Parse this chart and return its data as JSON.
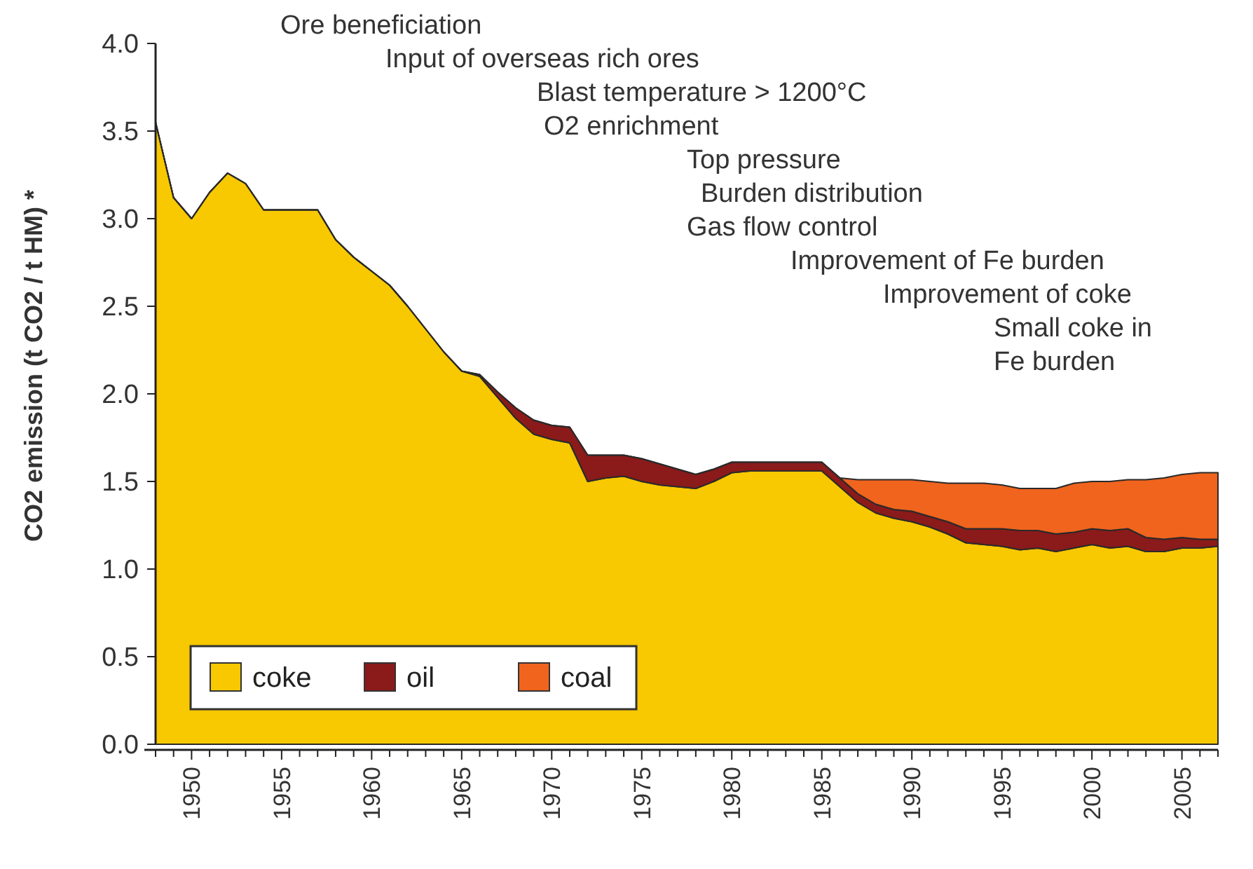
{
  "chart_data": {
    "type": "area",
    "stacked": true,
    "ylabel": "CO2 emission (t CO2 / t HM)  *",
    "x": [
      1948,
      1949,
      1950,
      1951,
      1952,
      1953,
      1954,
      1955,
      1956,
      1957,
      1958,
      1959,
      1960,
      1961,
      1962,
      1963,
      1964,
      1965,
      1966,
      1967,
      1968,
      1969,
      1970,
      1971,
      1972,
      1973,
      1974,
      1975,
      1976,
      1977,
      1978,
      1979,
      1980,
      1981,
      1982,
      1983,
      1984,
      1985,
      1986,
      1987,
      1988,
      1989,
      1990,
      1991,
      1992,
      1993,
      1994,
      1995,
      1996,
      1997,
      1998,
      1999,
      2000,
      2001,
      2002,
      2003,
      2004,
      2005,
      2006,
      2007
    ],
    "series": [
      {
        "name": "coke",
        "color": "#f8c800",
        "values": [
          3.55,
          3.12,
          3.0,
          3.15,
          3.26,
          3.2,
          3.05,
          3.05,
          3.05,
          3.05,
          2.88,
          2.78,
          2.7,
          2.62,
          2.5,
          2.37,
          2.24,
          2.13,
          2.1,
          1.98,
          1.86,
          1.77,
          1.74,
          1.72,
          1.5,
          1.52,
          1.53,
          1.5,
          1.48,
          1.47,
          1.46,
          1.5,
          1.55,
          1.56,
          1.56,
          1.56,
          1.56,
          1.56,
          1.47,
          1.38,
          1.32,
          1.29,
          1.27,
          1.24,
          1.2,
          1.15,
          1.14,
          1.13,
          1.11,
          1.12,
          1.1,
          1.12,
          1.14,
          1.12,
          1.13,
          1.1,
          1.1,
          1.12,
          1.12,
          1.13
        ]
      },
      {
        "name": "oil",
        "color": "#8b1a1a",
        "values": [
          0,
          0,
          0,
          0,
          0,
          0,
          0,
          0,
          0,
          0,
          0,
          0,
          0,
          0,
          0,
          0,
          0,
          0,
          0.01,
          0.03,
          0.06,
          0.08,
          0.08,
          0.09,
          0.15,
          0.13,
          0.12,
          0.13,
          0.12,
          0.1,
          0.08,
          0.07,
          0.06,
          0.05,
          0.05,
          0.05,
          0.05,
          0.05,
          0.05,
          0.05,
          0.05,
          0.05,
          0.06,
          0.06,
          0.07,
          0.08,
          0.09,
          0.1,
          0.11,
          0.1,
          0.1,
          0.09,
          0.09,
          0.1,
          0.1,
          0.08,
          0.07,
          0.06,
          0.05,
          0.04
        ]
      },
      {
        "name": "coal",
        "color": "#f0641e",
        "values": [
          0,
          0,
          0,
          0,
          0,
          0,
          0,
          0,
          0,
          0,
          0,
          0,
          0,
          0,
          0,
          0,
          0,
          0,
          0,
          0,
          0,
          0,
          0,
          0,
          0,
          0,
          0,
          0,
          0,
          0,
          0,
          0,
          0,
          0,
          0,
          0,
          0,
          0,
          0,
          0.08,
          0.14,
          0.17,
          0.18,
          0.2,
          0.22,
          0.26,
          0.26,
          0.25,
          0.24,
          0.24,
          0.26,
          0.28,
          0.27,
          0.28,
          0.28,
          0.33,
          0.35,
          0.36,
          0.38,
          0.38
        ]
      }
    ],
    "xlim": [
      1948,
      2007
    ],
    "xticks": [
      {
        "value": 1948,
        "label": null
      },
      {
        "value": 1949,
        "label": null
      },
      1950,
      {
        "value": 1951,
        "label": null
      },
      {
        "value": 1952,
        "label": null
      },
      {
        "value": 1953,
        "label": null
      },
      {
        "value": 1954,
        "label": null
      },
      1955,
      {
        "value": 1956,
        "label": null
      },
      {
        "value": 1957,
        "label": null
      },
      {
        "value": 1958,
        "label": null
      },
      {
        "value": 1959,
        "label": null
      },
      1960,
      {
        "value": 1961,
        "label": null
      },
      {
        "value": 1962,
        "label": null
      },
      {
        "value": 1963,
        "label": null
      },
      {
        "value": 1964,
        "label": null
      },
      1965,
      {
        "value": 1966,
        "label": null
      },
      {
        "value": 1967,
        "label": null
      },
      {
        "value": 1968,
        "label": null
      },
      {
        "value": 1969,
        "label": null
      },
      1970,
      {
        "value": 1971,
        "label": null
      },
      {
        "value": 1972,
        "label": null
      },
      {
        "value": 1973,
        "label": null
      },
      {
        "value": 1974,
        "label": null
      },
      1975,
      {
        "value": 1976,
        "label": null
      },
      {
        "value": 1977,
        "label": null
      },
      {
        "value": 1978,
        "label": null
      },
      {
        "value": 1979,
        "label": null
      },
      1980,
      {
        "value": 1981,
        "label": null
      },
      {
        "value": 1982,
        "label": null
      },
      {
        "value": 1983,
        "label": null
      },
      {
        "value": 1984,
        "label": null
      },
      1985,
      {
        "value": 1986,
        "label": null
      },
      {
        "value": 1987,
        "label": null
      },
      {
        "value": 1988,
        "label": null
      },
      {
        "value": 1989,
        "label": null
      },
      1990,
      {
        "value": 1991,
        "label": null
      },
      {
        "value": 1992,
        "label": null
      },
      {
        "value": 1993,
        "label": null
      },
      {
        "value": 1994,
        "label": null
      },
      1995,
      {
        "value": 1996,
        "label": null
      },
      {
        "value": 1997,
        "label": null
      },
      {
        "value": 1998,
        "label": null
      },
      {
        "value": 1999,
        "label": null
      },
      2000,
      {
        "value": 2001,
        "label": null
      },
      {
        "value": 2002,
        "label": null
      },
      {
        "value": 2003,
        "label": null
      },
      {
        "value": 2004,
        "label": null
      },
      2005,
      {
        "value": 2006,
        "label": null
      },
      {
        "value": 2007,
        "label": null
      }
    ],
    "ylim": [
      0,
      4
    ],
    "yticks": [
      {
        "value": 0,
        "label": "0.0"
      },
      {
        "value": 0.5,
        "label": "0.5"
      },
      {
        "value": 1,
        "label": "1.0"
      },
      {
        "value": 1.5,
        "label": "1.5"
      },
      {
        "value": 2,
        "label": "2.0"
      },
      {
        "value": 2.5,
        "label": "2.5"
      },
      {
        "value": 3,
        "label": "3.0"
      },
      {
        "value": 3.5,
        "label": "3.5"
      },
      {
        "value": 4,
        "label": "4.0"
      }
    ],
    "legend": "bottom left",
    "grid": false,
    "annotations": [
      "Ore beneficiation",
      "Input of overseas rich ores",
      "Blast temperature > 1200°C",
      "O2 enrichment",
      "Top pressure",
      "Burden distribution",
      "Gas flow control",
      "Improvement of Fe burden",
      "Improvement of coke",
      "Small coke in\nFe burden"
    ]
  }
}
